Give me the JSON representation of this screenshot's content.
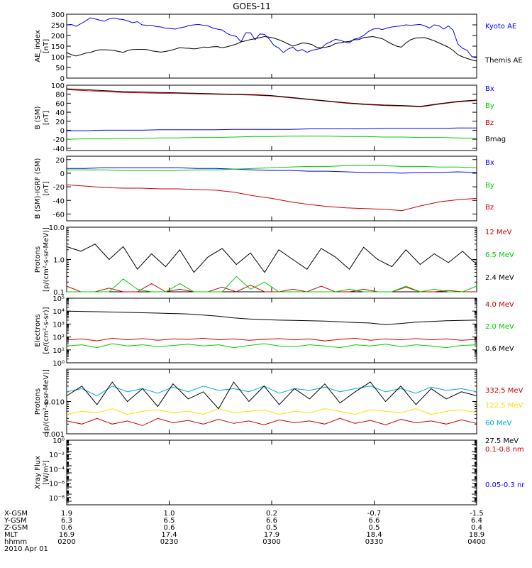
{
  "title": "GOES-11",
  "chart_data": [
    {
      "type": "line",
      "ylabel": [
        "AE_index",
        "[nT]"
      ],
      "ylim": [
        0,
        300
      ],
      "yticks": [
        0,
        50,
        100,
        150,
        200,
        250,
        300
      ],
      "yticklabels": [
        "0",
        "50",
        "100",
        "150",
        "200",
        "250",
        "300"
      ],
      "scale": "linear",
      "legend": [
        {
          "label": "Kyoto AE",
          "color": "#0000ff"
        },
        {
          "label": "Themis AE",
          "color": "#000000"
        }
      ],
      "series": [
        {
          "name": "Kyoto AE",
          "color": "#0000ff",
          "values": [
            250,
            252,
            243,
            255,
            268,
            283,
            278,
            272,
            267,
            278,
            282,
            277,
            275,
            268,
            260,
            265,
            250,
            248,
            248,
            242,
            240,
            234,
            233,
            230,
            236,
            240,
            247,
            250,
            252,
            248,
            245,
            235,
            230,
            226,
            210,
            200,
            196,
            170,
            213,
            213,
            180,
            207,
            205,
            183,
            153,
            141,
            120,
            137,
            145,
            127,
            134,
            121,
            130,
            135,
            140,
            160,
            170,
            182,
            178,
            170,
            165,
            183,
            188,
            200,
            218,
            230,
            233,
            228,
            235,
            240,
            243,
            245,
            250,
            248,
            250,
            252,
            245,
            235,
            250,
            246,
            230,
            245,
            225,
            160,
            140,
            130,
            100,
            95
          ]
        },
        {
          "name": "Themis AE",
          "color": "#000000",
          "values": [
            120,
            110,
            104,
            110,
            117,
            120,
            128,
            133,
            133,
            132,
            130,
            125,
            121,
            130,
            134,
            135,
            135,
            134,
            128,
            125,
            122,
            125,
            130,
            136,
            143,
            141,
            140,
            137,
            140,
            146,
            144,
            147,
            148,
            143,
            147,
            153,
            160,
            170,
            175,
            181,
            185,
            190,
            195,
            192,
            188,
            180,
            171,
            160,
            150,
            157,
            165,
            163,
            158,
            145,
            142,
            145,
            150,
            162,
            166,
            170,
            172,
            180,
            181,
            190,
            193,
            195,
            190,
            185,
            172,
            160,
            150,
            145,
            165,
            180,
            188,
            189,
            190,
            183,
            175,
            165,
            155,
            145,
            130,
            110,
            100,
            92,
            85,
            80
          ]
        }
      ]
    },
    {
      "type": "line",
      "ylabel": [
        "B (SM)",
        "[nT]"
      ],
      "ylim": [
        -45,
        100
      ],
      "yticks": [
        -40,
        -20,
        0,
        20,
        40,
        60,
        80,
        100
      ],
      "yticklabels": [
        "-40",
        "-20",
        "0",
        "20",
        "40",
        "60",
        "80",
        "100"
      ],
      "scale": "linear",
      "legend": [
        {
          "label": "Bx",
          "color": "#0000ff"
        },
        {
          "label": "By",
          "color": "#00cc00"
        },
        {
          "label": "Bz",
          "color": "#cc0000"
        },
        {
          "label": "Bmag",
          "color": "#000000"
        }
      ],
      "series": [
        {
          "name": "Bx",
          "color": "#0000ff",
          "values": [
            -1,
            -1,
            0,
            0,
            0,
            1,
            1,
            1,
            1,
            2,
            2,
            2,
            2,
            3,
            3,
            3,
            3,
            4,
            4,
            4,
            4,
            5,
            5
          ]
        },
        {
          "name": "By",
          "color": "#00cc00",
          "values": [
            -20,
            -19,
            -19,
            -18,
            -18,
            -17,
            -17,
            -16,
            -16,
            -15,
            -14,
            -14,
            -13,
            -13,
            -13,
            -14,
            -14,
            -15,
            -15,
            -16,
            -16,
            -17,
            -18
          ]
        },
        {
          "name": "Bz",
          "color": "#cc0000",
          "values": [
            90,
            88,
            86,
            84,
            83,
            82,
            82,
            81,
            80,
            79,
            78,
            76,
            72,
            68,
            64,
            60,
            57,
            55,
            54,
            52,
            58,
            63,
            66
          ]
        },
        {
          "name": "Bmag",
          "color": "#000000",
          "values": [
            92,
            90,
            88,
            86,
            85,
            84,
            83,
            82,
            81,
            80,
            79,
            77,
            73,
            69,
            65,
            61,
            58,
            56,
            55,
            53,
            59,
            64,
            67
          ]
        }
      ]
    },
    {
      "type": "line",
      "ylabel": [
        "B (SM)-IGRF (SM)",
        "[nT]"
      ],
      "ylim": [
        -70,
        25
      ],
      "yticks": [
        -60,
        -40,
        -20,
        0,
        20
      ],
      "yticklabels": [
        "-60",
        "-40",
        "-20",
        "0",
        "20"
      ],
      "scale": "linear",
      "legend": [
        {
          "label": "Bx",
          "color": "#0000ff"
        },
        {
          "label": "By",
          "color": "#00cc00"
        },
        {
          "label": "Bz",
          "color": "#cc0000"
        }
      ],
      "series": [
        {
          "name": "Bx",
          "color": "#0000ff",
          "values": [
            7,
            7,
            8,
            8,
            8,
            8,
            8,
            7,
            7,
            6,
            5,
            4,
            4,
            3,
            3,
            2,
            1,
            1,
            0,
            1,
            1,
            2,
            1
          ]
        },
        {
          "name": "By",
          "color": "#00cc00",
          "values": [
            5,
            5,
            5,
            4,
            4,
            4,
            4,
            5,
            5,
            6,
            7,
            8,
            9,
            10,
            10,
            11,
            11,
            11,
            10,
            10,
            9,
            9,
            8
          ]
        },
        {
          "name": "Bz",
          "color": "#cc0000",
          "values": [
            -17,
            -19,
            -21,
            -22,
            -22,
            -23,
            -23,
            -24,
            -25,
            -28,
            -33,
            -37,
            -42,
            -46,
            -49,
            -51,
            -52,
            -53,
            -55,
            -48,
            -42,
            -39,
            -37
          ]
        }
      ]
    },
    {
      "type": "line",
      "ylabel": [
        "Protons",
        "[p/(cm²-s-sr-MeV)]"
      ],
      "ylim": [
        0.1,
        10
      ],
      "yticks": [
        0.1,
        1,
        10
      ],
      "yticklabels": [
        "0.1",
        "1.0",
        "10.0"
      ],
      "scale": "log",
      "legend": [
        {
          "label": "12 MeV",
          "color": "#cc0000"
        },
        {
          "label": "6.5 MeV",
          "color": "#00cc00"
        },
        {
          "label": "2.4 MeV",
          "color": "#000000"
        }
      ],
      "series": [
        {
          "name": "12 MeV",
          "color": "#cc0000",
          "values": [
            0.15,
            0.1,
            0.09,
            0.13,
            0.1,
            0.08,
            0.18,
            0.09,
            0.12,
            0.1,
            0.09,
            0.14,
            0.1,
            0.16,
            0.09,
            0.1,
            0.12,
            0.08,
            0.15,
            0.1,
            0.09,
            0.12,
            0.1,
            0.08,
            0.14,
            0.1,
            0.09,
            0.11,
            0.1,
            0.09
          ]
        },
        {
          "name": "6.5 MeV",
          "color": "#00cc00",
          "values": [
            0.09,
            0.08,
            0.09,
            0.1,
            0.25,
            0.12,
            0.1,
            0.1,
            0.18,
            0.1,
            0.09,
            0.1,
            0.3,
            0.12,
            0.2,
            0.1,
            0.09,
            0.1,
            0.09,
            0.1,
            0.12,
            0.1,
            0.09,
            0.1,
            0.15,
            0.1,
            0.12,
            0.1,
            0.09,
            0.15
          ]
        },
        {
          "name": "2.4 MeV",
          "color": "#000000",
          "values": [
            2.5,
            1.8,
            3,
            1,
            2.5,
            0.5,
            1.5,
            0.6,
            2,
            0.4,
            1.2,
            2.2,
            0.7,
            1.6,
            0.4,
            2,
            1,
            0.5,
            2.2,
            1.2,
            0.5,
            2.4,
            1,
            0.6,
            2,
            0.7,
            1.5,
            0.8,
            1.8,
            0.7
          ]
        }
      ]
    },
    {
      "type": "line",
      "ylabel": [
        "Electrons",
        "[e/(cm²-s-sr)]"
      ],
      "ylim": [
        1,
        100000
      ],
      "yticks": [
        1,
        10,
        100,
        1000,
        10000,
        100000
      ],
      "yticklabels": [
        "10⁰",
        "10¹",
        "10²",
        "10³",
        "10⁴",
        "10⁵"
      ],
      "scale": "log",
      "legend": [
        {
          "label": "4.0 MeV",
          "color": "#cc0000"
        },
        {
          "label": "2.0 MeV",
          "color": "#00cc00"
        },
        {
          "label": "0.6 MeV",
          "color": "#000000"
        }
      ],
      "series": [
        {
          "name": "4.0 MeV",
          "color": "#cc0000",
          "values": [
            60,
            70,
            50,
            80,
            60,
            75,
            55,
            70,
            65,
            80,
            60,
            70,
            55,
            65,
            75,
            60,
            70,
            50,
            65,
            80,
            55,
            70,
            60,
            75,
            60,
            70,
            55,
            65
          ]
        },
        {
          "name": "2.0 MeV",
          "color": "#00cc00",
          "values": [
            20,
            25,
            15,
            30,
            20,
            25,
            18,
            22,
            28,
            20,
            25,
            15,
            22,
            30,
            20,
            18,
            25,
            20,
            15,
            25,
            20,
            28,
            18,
            25,
            20,
            15,
            22,
            25
          ]
        },
        {
          "name": "0.6 MeV",
          "color": "#000000",
          "values": [
            10000,
            9500,
            9000,
            8500,
            8000,
            7500,
            7000,
            6500,
            6000,
            5000,
            4000,
            3000,
            2500,
            2200,
            2000,
            1900,
            1800,
            1700,
            1500,
            1300,
            1200,
            900,
            1100,
            1400,
            1600,
            1800,
            1900,
            2000
          ]
        }
      ]
    },
    {
      "type": "line",
      "ylabel": [
        "Protons",
        "[p/(cm²-s-sr-MeV)]"
      ],
      "ylim": [
        0.001,
        0.1
      ],
      "yticks": [
        0.001,
        0.01
      ],
      "yticklabels": [
        "0.001",
        "0.010"
      ],
      "scale": "log",
      "legend": [
        {
          "label": "332.5 MeV",
          "color": "#cc0000"
        },
        {
          "label": "122.5 MeV",
          "color": "#ffdd00"
        },
        {
          "label": "60 MeV",
          "color": "#00aadd"
        },
        {
          "label": "27.5 MeV",
          "color": "#000000"
        }
      ],
      "series": [
        {
          "name": "332.5 MeV",
          "color": "#cc0000",
          "values": [
            0.0025,
            0.002,
            0.003,
            0.002,
            0.0025,
            0.0018,
            0.003,
            0.0022,
            0.0026,
            0.002,
            0.0028,
            0.0021,
            0.0025,
            0.0019,
            0.0027,
            0.0022,
            0.0025,
            0.002,
            0.003,
            0.0021,
            0.0026,
            0.0019,
            0.0028,
            0.0022,
            0.0025,
            0.002,
            0.0027,
            0.0021
          ]
        },
        {
          "name": "122.5 MeV",
          "color": "#ffdd00",
          "values": [
            0.004,
            0.005,
            0.0045,
            0.006,
            0.004,
            0.005,
            0.0055,
            0.0045,
            0.005,
            0.004,
            0.006,
            0.0045,
            0.005,
            0.0055,
            0.004,
            0.005,
            0.0045,
            0.006,
            0.005,
            0.004,
            0.0055,
            0.005,
            0.0045,
            0.006,
            0.004,
            0.005,
            0.0055,
            0.0045
          ]
        },
        {
          "name": "60 MeV",
          "color": "#00aadd",
          "values": [
            0.02,
            0.025,
            0.015,
            0.03,
            0.02,
            0.025,
            0.018,
            0.028,
            0.02,
            0.03,
            0.022,
            0.025,
            0.02,
            0.03,
            0.018,
            0.025,
            0.022,
            0.028,
            0.02,
            0.025,
            0.03,
            0.02,
            0.025,
            0.018,
            0.028,
            0.022,
            0.025,
            0.02
          ]
        },
        {
          "name": "27.5 MeV",
          "color": "#000000",
          "values": [
            0.015,
            0.03,
            0.008,
            0.04,
            0.01,
            0.025,
            0.007,
            0.035,
            0.012,
            0.02,
            0.006,
            0.04,
            0.01,
            0.03,
            0.008,
            0.025,
            0.012,
            0.035,
            0.009,
            0.02,
            0.04,
            0.01,
            0.03,
            0.008,
            0.025,
            0.012,
            0.02,
            0.015
          ]
        }
      ]
    },
    {
      "type": "line",
      "ylabel": [
        "Xray Flux",
        "[W/m²]"
      ],
      "ylim": [
        1e-09,
        1
      ],
      "yticks": [
        1e-08,
        1e-06,
        0.0001,
        0.01,
        1
      ],
      "yticklabels": [
        "10⁻⁸",
        "10⁻⁶",
        "10⁻⁴",
        "10⁻²",
        "10⁰"
      ],
      "scale": "log",
      "legend": [
        {
          "label": "0.1-0.8 nm",
          "color": "#cc0000"
        },
        {
          "label": "0.05-0.3 nr",
          "color": "#0000ff"
        }
      ],
      "series": []
    }
  ],
  "xaxis": {
    "rows": [
      {
        "label": "X-GSM",
        "values": [
          "1.9",
          "1.0",
          "0.2",
          "-0.7",
          "-1.5"
        ]
      },
      {
        "label": "Y-GSM",
        "values": [
          "6.3",
          "6.5",
          "6.6",
          "6.6",
          "6.4"
        ]
      },
      {
        "label": "Z-GSM",
        "values": [
          "0.6",
          "0.6",
          "0.5",
          "0.5",
          "0.4"
        ]
      },
      {
        "label": "MLT",
        "values": [
          "16.9",
          "17.4",
          "17.9",
          "18.4",
          "18.9"
        ]
      },
      {
        "label": "hhmm",
        "values": [
          "0200",
          "0230",
          "0300",
          "0330",
          "0400"
        ]
      }
    ],
    "date": "2010 Apr 01"
  }
}
